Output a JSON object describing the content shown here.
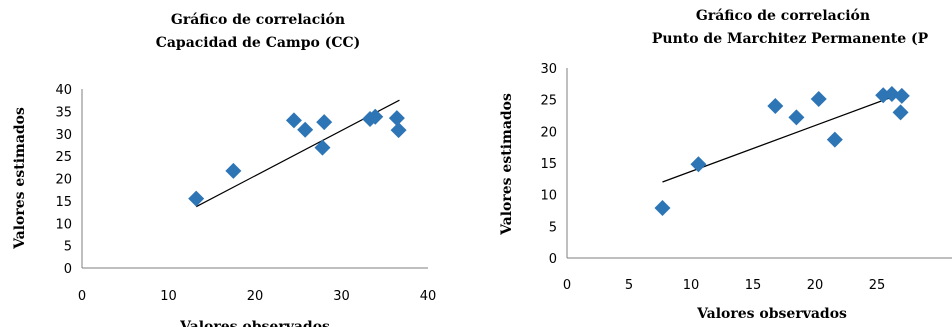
{
  "chart_data": [
    {
      "type": "scatter",
      "title_line1": "Gráfico de correlación",
      "title_line2": "Capacidad de Campo (CC)",
      "xlabel": "Valores observados",
      "ylabel": "Valores estimados",
      "xlim": [
        0,
        40
      ],
      "ylim": [
        0,
        40
      ],
      "xticks": [
        "0",
        "10",
        "20",
        "30",
        "40"
      ],
      "yticks": [
        "0",
        "5",
        "10",
        "15",
        "20",
        "25",
        "30",
        "35",
        "40"
      ],
      "series": [
        {
          "x": [
            13.2,
            17.5,
            24.5,
            25.8,
            27.8,
            28.0,
            33.3,
            33.9,
            36.4,
            36.6
          ],
          "y": [
            15.5,
            21.7,
            33.0,
            30.9,
            26.9,
            32.6,
            33.3,
            33.8,
            33.5,
            30.8
          ]
        }
      ],
      "trendline": {
        "x": [
          13.2,
          36.7
        ],
        "y": [
          13.7,
          37.5
        ]
      },
      "grid": false,
      "colors": {
        "marker": "#2e75b6",
        "trend": "#000000"
      }
    },
    {
      "type": "scatter",
      "title_line1": "Gráfico de correlación",
      "title_line2": "Punto de Marchitez Permanente (P",
      "xlabel": "Valores observados",
      "ylabel": "Valores estimados",
      "xlim": [
        0,
        30
      ],
      "ylim": [
        0,
        30
      ],
      "xticks": [
        "0",
        "5",
        "10",
        "15",
        "20",
        "25"
      ],
      "yticks": [
        "0",
        "5",
        "10",
        "15",
        "20",
        "25",
        "30"
      ],
      "series": [
        {
          "x": [
            7.7,
            10.6,
            16.8,
            18.5,
            20.3,
            21.6,
            25.5,
            26.2,
            26.9,
            27.0
          ],
          "y": [
            7.9,
            14.8,
            24.0,
            22.2,
            25.1,
            18.7,
            25.7,
            25.9,
            23.0,
            25.6
          ]
        }
      ],
      "trendline": {
        "x": [
          7.7,
          27.3
        ],
        "y": [
          12.0,
          26.2
        ]
      },
      "grid": false,
      "colors": {
        "marker": "#2e75b6",
        "trend": "#000000"
      }
    }
  ]
}
